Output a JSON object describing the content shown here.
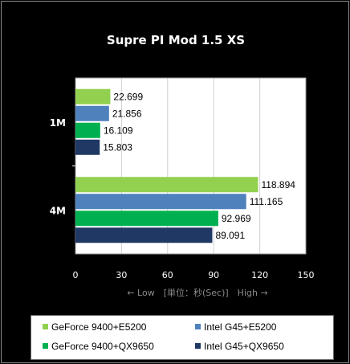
{
  "chart_data": {
    "type": "bar",
    "orientation": "horizontal",
    "title": "Supre PI Mod 1.5 XS",
    "xlabel": "← Low　[単位：秒(Sec)]　High →",
    "categories": [
      "1M",
      "4M"
    ],
    "xlim": [
      0,
      150
    ],
    "xticks": [
      0,
      30,
      60,
      90,
      120,
      150
    ],
    "grid": true,
    "legend_position": "bottom",
    "series": [
      {
        "name": "GeForce 9400+E5200",
        "color": "#92d050",
        "values": [
          22.699,
          118.894
        ]
      },
      {
        "name": "Intel G45+E5200",
        "color": "#4f81bd",
        "values": [
          21.856,
          111.165
        ]
      },
      {
        "name": "GeForce 9400+QX9650",
        "color": "#00b050",
        "values": [
          16.109,
          92.969
        ]
      },
      {
        "name": "Intel G45+QX9650",
        "color": "#1f3864",
        "values": [
          15.803,
          89.091
        ]
      }
    ],
    "value_labels": [
      [
        "22.699",
        "21.856",
        "16.109",
        "15.803"
      ],
      [
        "118.894",
        "111.165",
        "92.969",
        "89.091"
      ]
    ]
  }
}
